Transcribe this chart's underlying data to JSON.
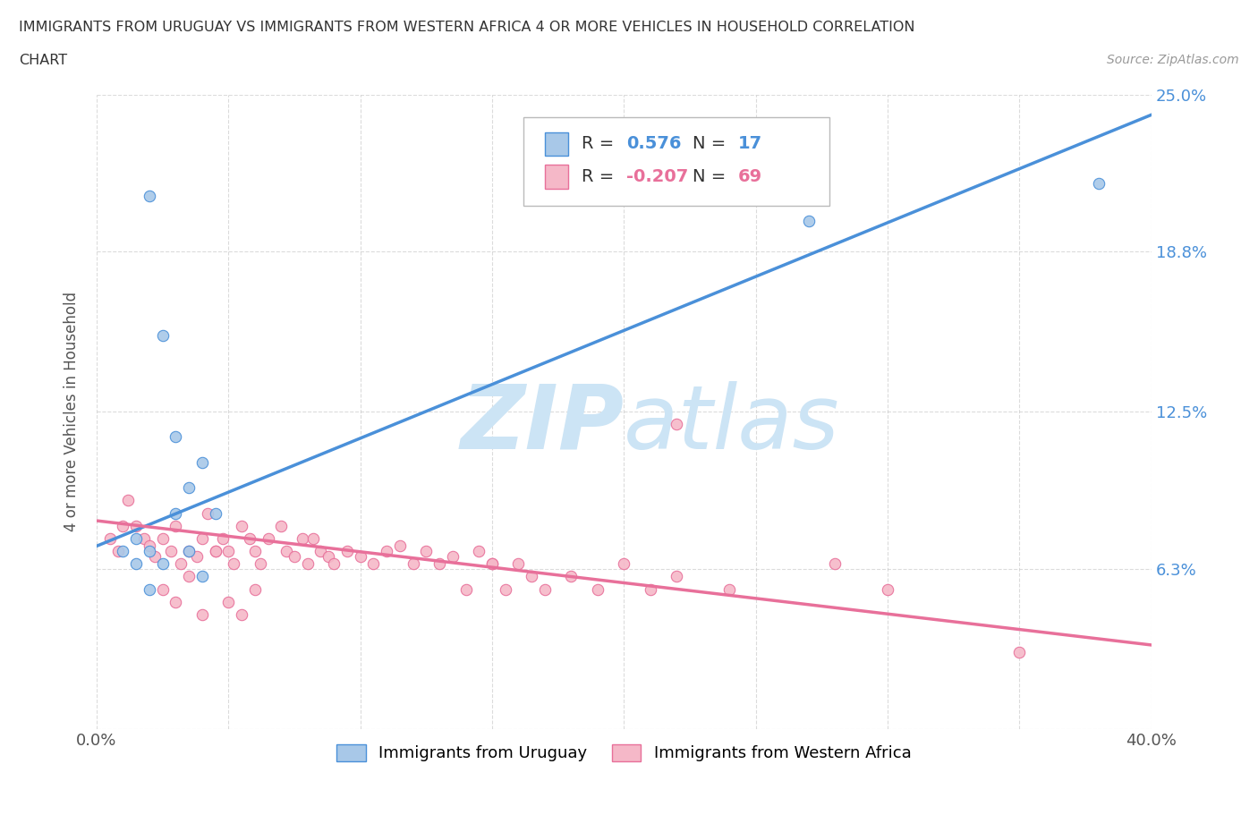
{
  "title_line1": "IMMIGRANTS FROM URUGUAY VS IMMIGRANTS FROM WESTERN AFRICA 4 OR MORE VEHICLES IN HOUSEHOLD CORRELATION",
  "title_line2": "CHART",
  "source_text": "Source: ZipAtlas.com",
  "ylabel": "4 or more Vehicles in Household",
  "xlim": [
    0.0,
    0.4
  ],
  "ylim": [
    0.0,
    0.25
  ],
  "xticks": [
    0.0,
    0.05,
    0.1,
    0.15,
    0.2,
    0.25,
    0.3,
    0.35,
    0.4
  ],
  "ytick_positions": [
    0.0,
    0.063,
    0.125,
    0.188,
    0.25
  ],
  "ytick_labels": [
    "",
    "6.3%",
    "12.5%",
    "18.8%",
    "25.0%"
  ],
  "R_uruguay": 0.576,
  "N_uruguay": 17,
  "R_western_africa": -0.207,
  "N_western_africa": 69,
  "dot_color_uruguay": "#a8c8e8",
  "dot_color_western_africa": "#f5b8c8",
  "line_color_uruguay": "#4a90d9",
  "line_color_western_africa": "#e8709a",
  "watermark_color": "#cce4f5",
  "background_color": "#ffffff",
  "grid_color": "#cccccc",
  "legend_label_1": "Immigrants from Uruguay",
  "legend_label_2": "Immigrants from Western Africa",
  "uruguay_x": [
    0.02,
    0.025,
    0.03,
    0.035,
    0.04,
    0.045,
    0.015,
    0.02,
    0.03,
    0.025,
    0.035,
    0.04,
    0.01,
    0.015,
    0.02,
    0.27,
    0.38
  ],
  "uruguay_y": [
    0.21,
    0.155,
    0.115,
    0.095,
    0.105,
    0.085,
    0.075,
    0.07,
    0.085,
    0.065,
    0.07,
    0.06,
    0.07,
    0.065,
    0.055,
    0.2,
    0.215
  ],
  "western_africa_x": [
    0.005,
    0.008,
    0.01,
    0.012,
    0.015,
    0.018,
    0.02,
    0.022,
    0.025,
    0.028,
    0.03,
    0.032,
    0.035,
    0.038,
    0.04,
    0.042,
    0.045,
    0.048,
    0.05,
    0.052,
    0.055,
    0.058,
    0.06,
    0.062,
    0.065,
    0.07,
    0.072,
    0.075,
    0.078,
    0.08,
    0.082,
    0.085,
    0.088,
    0.09,
    0.095,
    0.1,
    0.105,
    0.11,
    0.115,
    0.12,
    0.125,
    0.13,
    0.135,
    0.14,
    0.145,
    0.15,
    0.155,
    0.16,
    0.165,
    0.17,
    0.18,
    0.19,
    0.2,
    0.21,
    0.22,
    0.24,
    0.025,
    0.03,
    0.035,
    0.04,
    0.045,
    0.05,
    0.055,
    0.06,
    0.28,
    0.3,
    0.35,
    0.22,
    0.15
  ],
  "western_africa_y": [
    0.075,
    0.07,
    0.08,
    0.09,
    0.08,
    0.075,
    0.072,
    0.068,
    0.075,
    0.07,
    0.08,
    0.065,
    0.07,
    0.068,
    0.075,
    0.085,
    0.07,
    0.075,
    0.07,
    0.065,
    0.08,
    0.075,
    0.07,
    0.065,
    0.075,
    0.08,
    0.07,
    0.068,
    0.075,
    0.065,
    0.075,
    0.07,
    0.068,
    0.065,
    0.07,
    0.068,
    0.065,
    0.07,
    0.072,
    0.065,
    0.07,
    0.065,
    0.068,
    0.055,
    0.07,
    0.065,
    0.055,
    0.065,
    0.06,
    0.055,
    0.06,
    0.055,
    0.065,
    0.055,
    0.06,
    0.055,
    0.055,
    0.05,
    0.06,
    0.045,
    0.07,
    0.05,
    0.045,
    0.055,
    0.065,
    0.055,
    0.03,
    0.12,
    0.065
  ],
  "trendline_uruguay": [
    0.072,
    0.242
  ],
  "trendline_western_africa": [
    0.082,
    0.033
  ]
}
